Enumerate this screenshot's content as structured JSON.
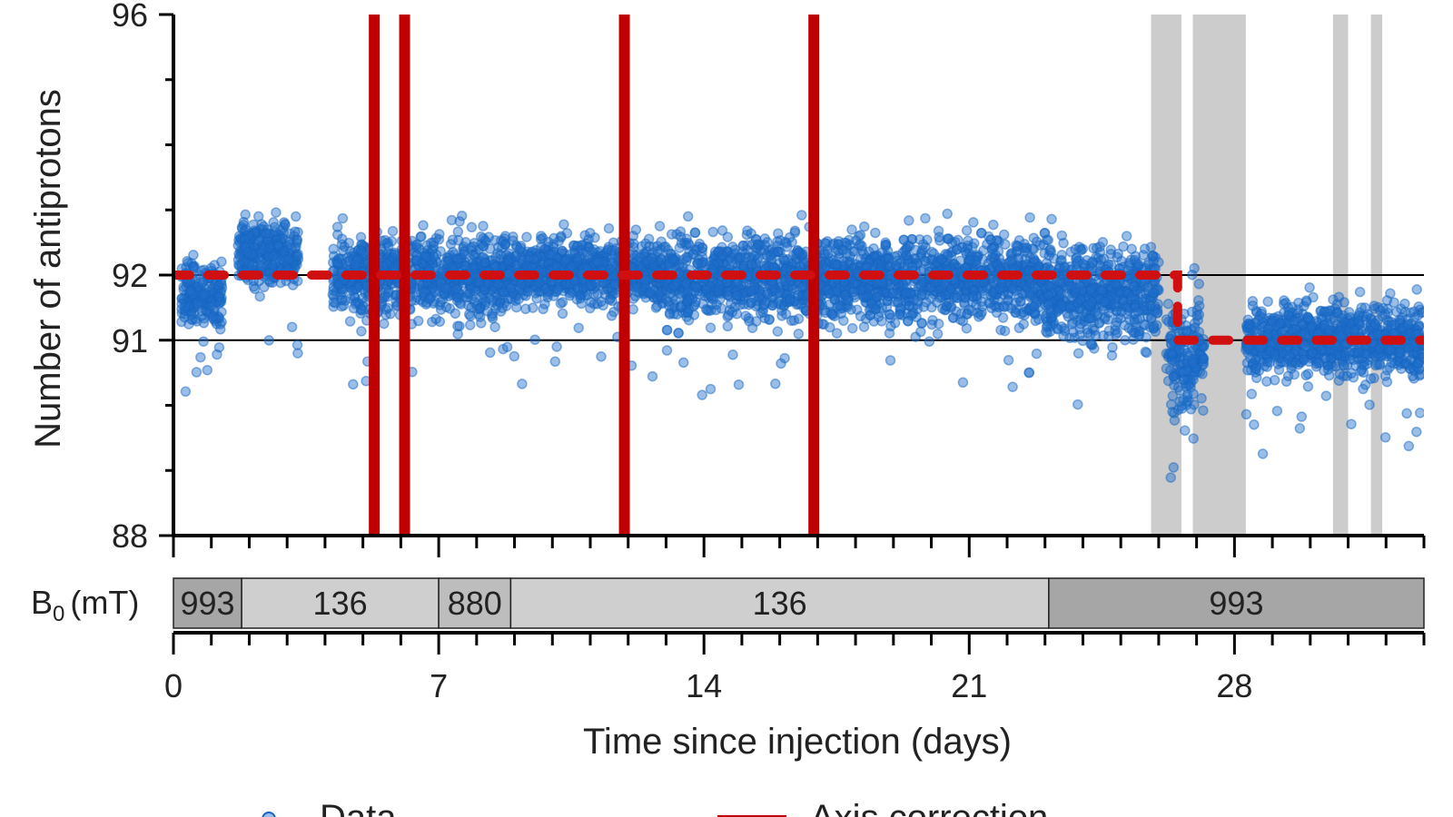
{
  "chart_data": {
    "type": "scatter",
    "title": "",
    "xlabel": "Time since injection (days)",
    "ylabel": "Number of antiprotons",
    "xlim": [
      0,
      33
    ],
    "ylim": [
      88,
      96
    ],
    "x_ticks": [
      0,
      7,
      14,
      21,
      28
    ],
    "x_tick_labels": [
      "0",
      "7",
      "14",
      "21",
      "28"
    ],
    "y_ticks": [
      88,
      91,
      92,
      96
    ],
    "y_tick_labels": [
      "88",
      "91",
      "92",
      "96"
    ],
    "reference_lines_y": [
      91,
      92
    ],
    "colors": {
      "data": "#1565c0",
      "data_fill": "#1e6fcc",
      "axis_correction": "#c00000",
      "dashed_fit": "#d01010",
      "excluded_band": "#cccccc",
      "field_993": "#a6a6a6",
      "field_136": "#cfcfcf",
      "field_880": "#bdbdbd"
    },
    "data_segments": [
      {
        "x0": 0.2,
        "x1": 1.3,
        "center": 91.7,
        "spread": 0.45
      },
      {
        "x0": 1.7,
        "x1": 3.3,
        "center": 92.3,
        "spread": 0.45
      },
      {
        "x0": 4.2,
        "x1": 8.8,
        "center": 92.0,
        "spread": 0.55
      },
      {
        "x0": 8.8,
        "x1": 13.0,
        "center": 92.05,
        "spread": 0.45
      },
      {
        "x0": 13.0,
        "x1": 23.0,
        "center": 91.95,
        "spread": 0.6
      },
      {
        "x0": 23.0,
        "x1": 26.0,
        "center": 91.75,
        "spread": 0.7
      },
      {
        "x0": 26.2,
        "x1": 27.2,
        "center": 90.7,
        "spread": 0.85
      },
      {
        "x0": 28.3,
        "x1": 33.0,
        "center": 91.0,
        "spread": 0.5
      }
    ],
    "fit_steps": [
      {
        "x0": 0,
        "x1": 26.5,
        "y": 92
      },
      {
        "x0": 26.5,
        "x1": 33,
        "y": 91
      }
    ],
    "axis_correction_times": [
      5.3,
      6.1,
      11.9,
      16.9
    ],
    "excluded_bands": [
      [
        25.8,
        26.6
      ],
      [
        26.9,
        28.3
      ],
      [
        30.6,
        31.0
      ],
      [
        31.6,
        31.9
      ]
    ],
    "field_label_unit": "(mT)",
    "field_label_symbol": "B",
    "field_label_sub": "0",
    "field_segments": [
      {
        "x0": 0,
        "x1": 1.8,
        "label": "993",
        "color": "#a6a6a6"
      },
      {
        "x0": 1.8,
        "x1": 7.0,
        "label": "136",
        "color": "#cfcfcf"
      },
      {
        "x0": 7.0,
        "x1": 8.9,
        "label": "880",
        "color": "#bdbdbd"
      },
      {
        "x0": 8.9,
        "x1": 23.1,
        "label": "136",
        "color": "#cfcfcf"
      },
      {
        "x0": 23.1,
        "x1": 33,
        "label": "993",
        "color": "#a6a6a6"
      }
    ],
    "legend": [
      {
        "label": "Data",
        "kind": "marker"
      },
      {
        "label": "Axis correction",
        "kind": "bar"
      }
    ]
  }
}
